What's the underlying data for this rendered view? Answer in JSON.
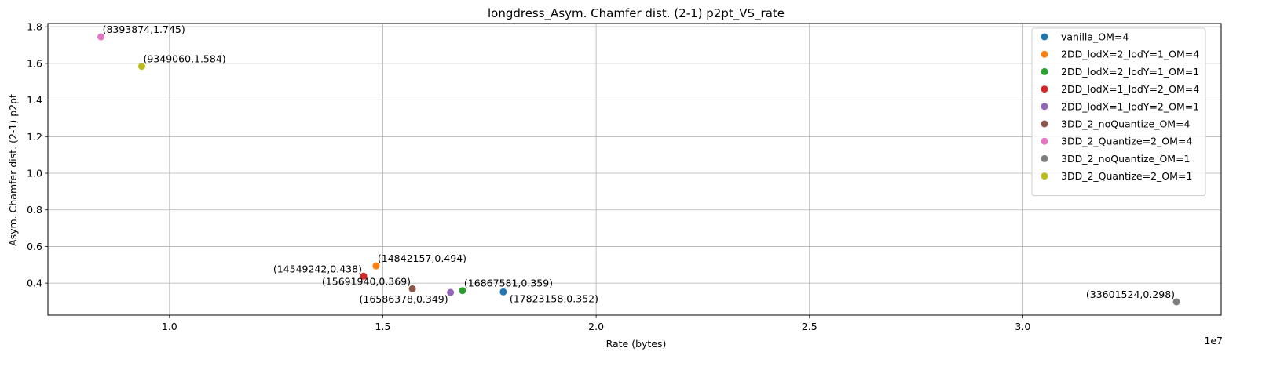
{
  "chart_data": {
    "type": "scatter",
    "title": "longdress_Asym. Chamfer dist. (2-1) p2pt_VS_rate",
    "xlabel": "Rate (bytes)",
    "ylabel": "Asym. Chamfer dist. (2-1) p2pt",
    "x_offset_label": "1e7",
    "xlim": [
      7150000,
      34650000
    ],
    "ylim": [
      0.225,
      1.818
    ],
    "xticks": [
      10000000,
      15000000,
      20000000,
      25000000,
      30000000
    ],
    "xtick_labels": [
      "1.0",
      "1.5",
      "2.0",
      "2.5",
      "3.0"
    ],
    "yticks": [
      0.4,
      0.6,
      0.8,
      1.0,
      1.2,
      1.4,
      1.6,
      1.8
    ],
    "ytick_labels": [
      "0.4",
      "0.6",
      "0.8",
      "1.0",
      "1.2",
      "1.4",
      "1.6",
      "1.8"
    ],
    "grid": true,
    "legend_position": "top-right",
    "series": [
      {
        "name": "vanilla_OM=4",
        "color": "#1f77b4",
        "x": 17823158,
        "y": 0.352,
        "label": "(17823158,0.352)",
        "label_pos": "below-right"
      },
      {
        "name": "2DD_lodX=2_lodY=1_OM=4",
        "color": "#ff7f0e",
        "x": 14842157,
        "y": 0.494,
        "label": "(14842157,0.494)",
        "label_pos": "above-right"
      },
      {
        "name": "2DD_lodX=2_lodY=1_OM=1",
        "color": "#2ca02c",
        "x": 16867581,
        "y": 0.359,
        "label": "(16867581,0.359)",
        "label_pos": "above-right"
      },
      {
        "name": "2DD_lodX=1_lodY=2_OM=4",
        "color": "#d62728",
        "x": 14549242,
        "y": 0.438,
        "label": "(14549242,0.438)",
        "label_pos": "above-left"
      },
      {
        "name": "2DD_lodX=1_lodY=2_OM=1",
        "color": "#9467bd",
        "x": 16586378,
        "y": 0.349,
        "label": "(16586378,0.349)",
        "label_pos": "below-left"
      },
      {
        "name": "3DD_2_noQuantize_OM=4",
        "color": "#8c564b",
        "x": 15691940,
        "y": 0.369,
        "label": "(15691940,0.369)",
        "label_pos": "above-left"
      },
      {
        "name": "3DD_2_Quantize=2_OM=4",
        "color": "#e377c2",
        "x": 8393874,
        "y": 1.745,
        "label": "(8393874,1.745)",
        "label_pos": "above-right"
      },
      {
        "name": "3DD_2_noQuantize_OM=1",
        "color": "#7f7f7f",
        "x": 33601524,
        "y": 0.298,
        "label": "(33601524,0.298)",
        "label_pos": "above-left"
      },
      {
        "name": "3DD_2_Quantize=2_OM=1",
        "color": "#bcbd22",
        "x": 9349060,
        "y": 1.584,
        "label": "(9349060,1.584)",
        "label_pos": "above-right"
      }
    ]
  }
}
